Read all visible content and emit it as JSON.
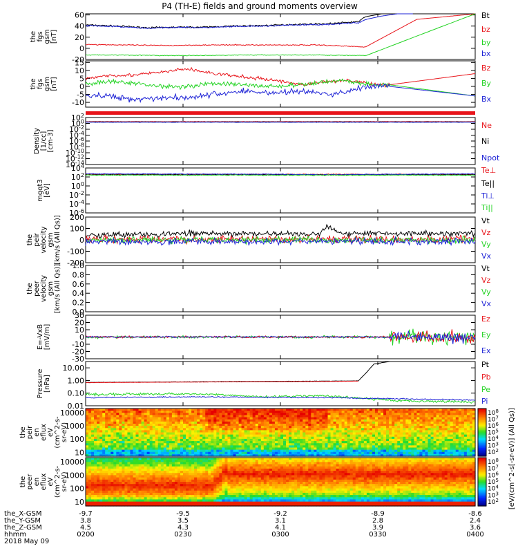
{
  "title": "P4 (TH-E) fields and ground moments overview",
  "date_label": "2018 May 09",
  "colorbar_label": "[eV/(cm^2-s[-sr-eV)] (All Qs)]",
  "colors": {
    "black": "#000000",
    "red": "#e8141a",
    "green": "#22d322",
    "blue": "#1e23d6"
  },
  "footer": {
    "row_labels": [
      "the_X-GSM",
      "the_Y-GSM",
      "the_Z-GSM",
      "hhmm"
    ],
    "ticks": [
      [
        "-9.7",
        "3.8",
        "4.5",
        "0200"
      ],
      [
        "-9.5",
        "3.5",
        "4.3",
        "0230"
      ],
      [
        "-9.2",
        "3.1",
        "4.1",
        "0300"
      ],
      [
        "-8.9",
        "2.8",
        "3.9",
        "0330"
      ],
      [
        "-8.6",
        "2.4",
        "3.6",
        "0400"
      ]
    ]
  },
  "chart_data": [
    {
      "type": "line",
      "ylabel": [
        "the",
        "fgs",
        "gsm",
        "[nT]"
      ],
      "yticks": [
        "60",
        "40",
        "20",
        "0",
        "-20"
      ],
      "ylim": [
        -20,
        62
      ],
      "legend": [
        {
          "text": "Bt",
          "color": "black"
        },
        {
          "text": "bz",
          "color": "red"
        },
        {
          "text": "by",
          "color": "green"
        },
        {
          "text": "bx",
          "color": "blue"
        }
      ],
      "series": [
        {
          "color": "black",
          "x": [
            0,
            0.08,
            0.16,
            0.24,
            0.3,
            0.38,
            0.46,
            0.54,
            0.62,
            0.7,
            0.72,
            0.76,
            0.8,
            0.84
          ],
          "y": [
            42,
            40,
            37,
            38,
            38,
            40,
            41,
            43,
            44,
            48,
            57,
            62,
            62,
            62
          ],
          "noise": 1.2
        },
        {
          "color": "blue",
          "x": [
            0,
            0.08,
            0.16,
            0.24,
            0.3,
            0.38,
            0.46,
            0.54,
            0.62,
            0.7,
            0.72,
            0.76,
            0.8,
            0.84
          ],
          "y": [
            41,
            39,
            36,
            38,
            37,
            39,
            40,
            42,
            43,
            46,
            52,
            58,
            62,
            62
          ],
          "noise": 1.0
        },
        {
          "color": "red",
          "x": [
            0,
            0.1,
            0.2,
            0.3,
            0.4,
            0.5,
            0.6,
            0.7,
            0.72,
            0.85,
            1.0
          ],
          "y": [
            7,
            6,
            5,
            6,
            6,
            6,
            6,
            3,
            3,
            52,
            62
          ],
          "noise": 0.8
        },
        {
          "color": "green",
          "x": [
            0,
            0.1,
            0.2,
            0.3,
            0.4,
            0.5,
            0.6,
            0.7,
            0.72,
            0.85,
            1.0
          ],
          "y": [
            -12,
            -12,
            -13,
            -13,
            -12,
            -12,
            -12,
            -13,
            -13,
            22,
            62
          ],
          "noise": 0.6
        }
      ]
    },
    {
      "type": "line",
      "ylabel": [
        "the",
        "fgs",
        "gsm",
        "[nT]"
      ],
      "yticks": [
        "15",
        "10",
        "5",
        "0",
        "-5",
        "-10"
      ],
      "ylim": [
        -13,
        16
      ],
      "legend": [
        {
          "text": "Bz",
          "color": "red"
        },
        {
          "text": "By",
          "color": "green"
        },
        {
          "text": "Bx",
          "color": "blue"
        }
      ],
      "series": [
        {
          "color": "red",
          "x": [
            0,
            0.06,
            0.12,
            0.2,
            0.26,
            0.33,
            0.4,
            0.48,
            0.56,
            0.62,
            0.66,
            0.7,
            0.74,
            0.78,
            1.0
          ],
          "y": [
            5,
            7,
            7,
            9,
            11,
            8,
            6,
            4,
            1,
            3,
            4,
            3,
            1,
            1,
            8
          ],
          "noise": 0.9
        },
        {
          "color": "green",
          "x": [
            0,
            0.06,
            0.12,
            0.2,
            0.26,
            0.33,
            0.4,
            0.48,
            0.56,
            0.62,
            0.66,
            0.7,
            0.74,
            0.78,
            1.0
          ],
          "y": [
            1,
            3,
            2,
            0,
            0,
            2,
            1,
            0,
            1,
            3,
            4,
            2,
            1,
            1,
            -6
          ],
          "noise": 1.2
        },
        {
          "color": "blue",
          "x": [
            0,
            0.06,
            0.12,
            0.2,
            0.26,
            0.33,
            0.4,
            0.48,
            0.56,
            0.62,
            0.66,
            0.7,
            0.74,
            0.78,
            1.0
          ],
          "y": [
            -6,
            -6,
            -8,
            -7,
            -7,
            -5,
            -3,
            -4,
            -3,
            -5,
            -4,
            -1,
            0,
            0,
            -6
          ],
          "noise": 1.6
        }
      ]
    },
    {
      "type": "line",
      "ylabel": [
        "Density",
        "[1/cc]",
        "[cm-3]"
      ],
      "yticks": [
        "10^2",
        "10^0",
        "10^-2",
        "10^-4",
        "10^-6",
        "10^-8",
        "10^-10",
        "10^-12",
        "10^-14"
      ],
      "ylog": true,
      "ylim": [
        -14,
        2
      ],
      "legend": [
        {
          "text": "Ne",
          "color": "red"
        },
        {
          "text": "Ni",
          "color": "black"
        },
        {
          "text": "Npot",
          "color": "blue"
        }
      ],
      "series": [
        {
          "color": "red",
          "x": [
            0,
            1
          ],
          "y": [
            0.6,
            0.6
          ],
          "noise": 0.05
        },
        {
          "color": "black",
          "x": [
            0,
            1
          ],
          "y": [
            0.5,
            0.5
          ],
          "noise": 0.05
        },
        {
          "color": "blue",
          "x": [
            0,
            1
          ],
          "y": [
            0.4,
            0.4
          ],
          "noise": 0.05
        }
      ]
    },
    {
      "type": "line",
      "ylabel": [
        "mgqt3",
        "[eV]"
      ],
      "yticks": [
        "10^4",
        "10^2",
        "10^0",
        "10^-2",
        "10^-4",
        "10^-6"
      ],
      "ylog": true,
      "ylim": [
        -6,
        4
      ],
      "legend": [
        {
          "text": "Te⊥",
          "color": "red"
        },
        {
          "text": "Te||",
          "color": "black"
        },
        {
          "text": "Ti⊥",
          "color": "blue"
        },
        {
          "text": "Ti||",
          "color": "green"
        }
      ],
      "series": [
        {
          "color": "red",
          "x": [
            0,
            1
          ],
          "y": [
            2.6,
            2.6
          ],
          "noise": 0.08
        },
        {
          "color": "black",
          "x": [
            0,
            1
          ],
          "y": [
            2.5,
            2.5
          ],
          "noise": 0.08
        },
        {
          "color": "blue",
          "x": [
            0,
            0.5,
            0.6,
            1
          ],
          "y": [
            2.7,
            2.6,
            2.5,
            2.7
          ],
          "noise": 0.08
        },
        {
          "color": "green",
          "x": [
            0,
            1
          ],
          "y": [
            2.4,
            2.4
          ],
          "noise": 0.08
        }
      ]
    },
    {
      "type": "line",
      "ylabel": [
        "the",
        "peir",
        "velocity",
        "gsm",
        "[km/s (All Qs)]"
      ],
      "yticks": [
        "200",
        "100",
        "0",
        "-100",
        "-200"
      ],
      "ylim": [
        -200,
        200
      ],
      "legend": [
        {
          "text": "Vt",
          "color": "black"
        },
        {
          "text": "Vz",
          "color": "red"
        },
        {
          "text": "Vy",
          "color": "green"
        },
        {
          "text": "Vx",
          "color": "blue"
        }
      ],
      "series": [
        {
          "color": "black",
          "x": [
            0,
            0.3,
            0.6,
            0.62,
            0.66,
            1
          ],
          "y": [
            45,
            55,
            50,
            120,
            60,
            55
          ],
          "noise": 22
        },
        {
          "color": "red",
          "x": [
            0,
            0.6,
            1
          ],
          "y": [
            5,
            5,
            5
          ],
          "noise": 28
        },
        {
          "color": "green",
          "x": [
            0,
            0.6,
            1
          ],
          "y": [
            0,
            0,
            0
          ],
          "noise": 24
        },
        {
          "color": "blue",
          "x": [
            0,
            0.6,
            1
          ],
          "y": [
            -15,
            -15,
            -15
          ],
          "noise": 24
        }
      ]
    },
    {
      "type": "line",
      "ylabel": [
        "the",
        "peer",
        "velocity",
        "gsm",
        "[km/s (All Qs)]"
      ],
      "yticks": [
        "1.0",
        "0.8",
        "0.6",
        "0.4",
        "0.2",
        "0.0"
      ],
      "ylim": [
        0,
        1
      ],
      "legend": [
        {
          "text": "Vt",
          "color": "black"
        },
        {
          "text": "Vz",
          "color": "red"
        },
        {
          "text": "Vy",
          "color": "green"
        },
        {
          "text": "Vx",
          "color": "blue"
        }
      ],
      "series": []
    },
    {
      "type": "line",
      "ylabel": [
        "E=-VxB",
        "[mV/m]"
      ],
      "yticks": [
        "30",
        "20",
        "10",
        "0",
        "-10",
        "-20",
        "-30"
      ],
      "ylim": [
        -30,
        30
      ],
      "legend": [
        {
          "text": "Ez",
          "color": "red"
        },
        {
          "text": "Ey",
          "color": "green"
        },
        {
          "text": "Ex",
          "color": "blue"
        }
      ],
      "series": [
        {
          "color": "green",
          "x": [
            0,
            0.7,
            0.8,
            1
          ],
          "y": [
            0,
            0,
            0,
            0
          ],
          "noise": 1.5,
          "noise_late": 9
        },
        {
          "color": "red",
          "x": [
            0,
            0.7,
            0.8,
            1
          ],
          "y": [
            0,
            0,
            0,
            0
          ],
          "noise": 1.2,
          "noise_late": 7
        },
        {
          "color": "blue",
          "x": [
            0,
            0.7,
            0.8,
            1
          ],
          "y": [
            0,
            0,
            0,
            0
          ],
          "noise": 0.8,
          "noise_late": 6
        }
      ]
    },
    {
      "type": "line",
      "ylabel": [
        "Pressure",
        "[nPa]"
      ],
      "yticks": [
        "10.00",
        "1.00",
        "0.10",
        "0.01"
      ],
      "ylog": true,
      "ylim": [
        -2,
        1.5
      ],
      "legend": [
        {
          "text": "Pt",
          "color": "black"
        },
        {
          "text": "Pb",
          "color": "red"
        },
        {
          "text": "Pe",
          "color": "green"
        },
        {
          "text": "Pi",
          "color": "blue"
        }
      ],
      "series": [
        {
          "color": "black",
          "x": [
            0,
            0.3,
            0.6,
            0.7,
            0.72,
            0.74,
            0.8,
            1
          ],
          "y": [
            -0.15,
            -0.1,
            -0.05,
            -0.03,
            0.6,
            1.3,
            1.6,
            1.6
          ],
          "noise": 0.01
        },
        {
          "color": "red",
          "x": [
            0,
            0.3,
            0.6,
            0.7
          ],
          "y": [
            -0.17,
            -0.12,
            -0.08,
            -0.05
          ],
          "noise": 0.01
        },
        {
          "color": "green",
          "x": [
            0,
            0.3,
            0.45,
            0.6,
            0.8,
            1
          ],
          "y": [
            -1.1,
            -1.05,
            -1.3,
            -1.2,
            -1.6,
            -1.7
          ],
          "noise": 0.08
        },
        {
          "color": "blue",
          "x": [
            0,
            0.3,
            0.6,
            0.8,
            1
          ],
          "y": [
            -1.35,
            -1.3,
            -1.35,
            -1.45,
            -1.55
          ],
          "noise": 0.04
        }
      ]
    },
    {
      "type": "heatmap",
      "ylabel": [
        "the",
        "peir",
        "en",
        "eflux",
        "eV",
        "(cm^2-s-",
        "sr-eV)"
      ],
      "yticks": [
        "10000",
        "1000",
        "100",
        "10"
      ],
      "ylog": true,
      "ylim": [
        0.7,
        4.3
      ],
      "colorbar_ticks": [
        "10^8",
        "10^7",
        "10^6",
        "10^5",
        "10^4",
        "10^3",
        "10^2"
      ]
    },
    {
      "type": "heatmap",
      "ylabel": [
        "the",
        "peer",
        "en",
        "eflux",
        "eV",
        "(cm^2-s-",
        "sr-eV)"
      ],
      "yticks": [
        "10000",
        "1000",
        "100",
        "10"
      ],
      "ylog": true,
      "ylim": [
        0.7,
        4.3
      ],
      "colorbar_ticks": [
        "10^8",
        "10^7",
        "10^6",
        "10^5",
        "10^4",
        "10^3",
        "10^2"
      ]
    }
  ]
}
